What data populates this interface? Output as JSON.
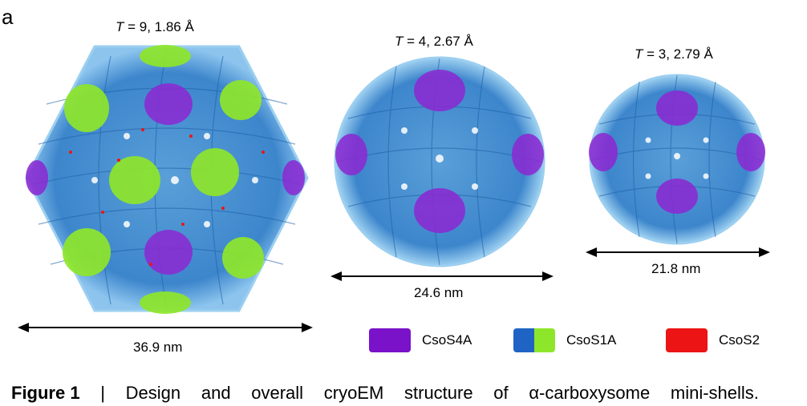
{
  "panel_letter": "a",
  "shells": [
    {
      "t_label": "T",
      "t_value": " = 9, 1.86 Å",
      "diameter": "36.9 nm"
    },
    {
      "t_label": "T",
      "t_value": " = 4, 2.67 Å",
      "diameter": "24.6 nm"
    },
    {
      "t_label": "T",
      "t_value": " = 3, 2.79 Å",
      "diameter": "21.8 nm"
    }
  ],
  "legend": [
    {
      "label": "CsoS4A",
      "color": "#7a12c9"
    },
    {
      "label": "CsoS1A",
      "color_left": "#1f64c4",
      "color_right": "#8ee62a"
    },
    {
      "label": "CsoS2",
      "color": "#ec1414"
    }
  ],
  "caption": {
    "figure_label": "Figure 1",
    "separator": "|",
    "words": [
      "Design",
      "and",
      "overall",
      "cryoEM",
      "structure",
      "of",
      "α-carboxysome",
      "mini-shells."
    ]
  }
}
